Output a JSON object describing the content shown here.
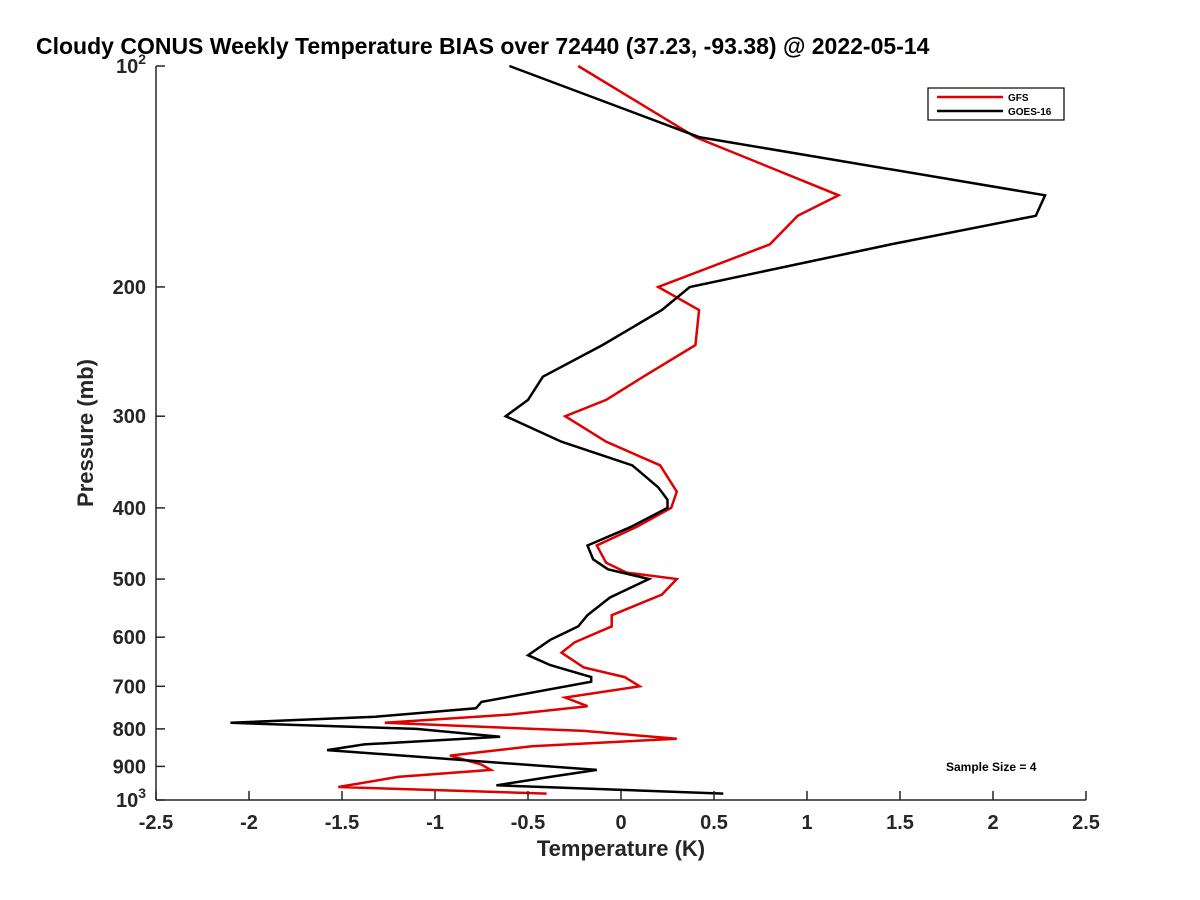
{
  "chart_data": {
    "type": "line",
    "title": "Cloudy CONUS Weekly Temperature BIAS over 72440 (37.23, -93.38) @ 2022-05-14",
    "xlabel": "Temperature (K)",
    "ylabel": "Pressure (mb)",
    "xlim": [
      -2.5,
      2.5
    ],
    "ylim": [
      100,
      1000
    ],
    "y_scale": "log",
    "y_reversed": true,
    "grid": false,
    "legend_position": "top-right",
    "xticks": [
      -2.5,
      -2,
      -1.5,
      -1,
      -0.5,
      0,
      0.5,
      1,
      1.5,
      2,
      2.5
    ],
    "xtick_labels": [
      "-2.5",
      "-2",
      "-1.5",
      "-1",
      "-0.5",
      "0",
      "0.5",
      "1",
      "1.5",
      "2",
      "2.5"
    ],
    "yticks": [
      100,
      200,
      300,
      400,
      500,
      600,
      700,
      800,
      900,
      1000
    ],
    "ytick_labels": [
      {
        "base": "10",
        "exp": "2"
      },
      {
        "base": "200",
        "exp": ""
      },
      {
        "base": "300",
        "exp": ""
      },
      {
        "base": "400",
        "exp": ""
      },
      {
        "base": "500",
        "exp": ""
      },
      {
        "base": "600",
        "exp": ""
      },
      {
        "base": "700",
        "exp": ""
      },
      {
        "base": "800",
        "exp": ""
      },
      {
        "base": "900",
        "exp": ""
      },
      {
        "base": "10",
        "exp": "3"
      }
    ],
    "annotation": "Sample Size = 4",
    "series": [
      {
        "name": "GFS",
        "color": "#e00000",
        "points": [
          {
            "x": -0.23,
            "y": 100
          },
          {
            "x": 0.4,
            "y": 125
          },
          {
            "x": 1.17,
            "y": 150
          },
          {
            "x": 0.95,
            "y": 160
          },
          {
            "x": 0.8,
            "y": 175
          },
          {
            "x": 0.2,
            "y": 200
          },
          {
            "x": 0.42,
            "y": 215
          },
          {
            "x": 0.4,
            "y": 240
          },
          {
            "x": 0.12,
            "y": 265
          },
          {
            "x": -0.08,
            "y": 285
          },
          {
            "x": -0.3,
            "y": 300
          },
          {
            "x": -0.08,
            "y": 325
          },
          {
            "x": 0.21,
            "y": 350
          },
          {
            "x": 0.3,
            "y": 380
          },
          {
            "x": 0.27,
            "y": 400
          },
          {
            "x": 0.08,
            "y": 425
          },
          {
            "x": -0.13,
            "y": 450
          },
          {
            "x": -0.08,
            "y": 475
          },
          {
            "x": 0.03,
            "y": 490
          },
          {
            "x": 0.3,
            "y": 500
          },
          {
            "x": 0.22,
            "y": 525
          },
          {
            "x": -0.05,
            "y": 560
          },
          {
            "x": -0.05,
            "y": 580
          },
          {
            "x": -0.25,
            "y": 610
          },
          {
            "x": -0.32,
            "y": 630
          },
          {
            "x": -0.2,
            "y": 660
          },
          {
            "x": 0.02,
            "y": 680
          },
          {
            "x": 0.1,
            "y": 700
          },
          {
            "x": -0.3,
            "y": 725
          },
          {
            "x": -0.18,
            "y": 745
          },
          {
            "x": -0.6,
            "y": 765
          },
          {
            "x": -1.27,
            "y": 785
          },
          {
            "x": -0.2,
            "y": 805
          },
          {
            "x": 0.3,
            "y": 825
          },
          {
            "x": -0.48,
            "y": 845
          },
          {
            "x": -0.92,
            "y": 870
          },
          {
            "x": -0.75,
            "y": 895
          },
          {
            "x": -0.7,
            "y": 910
          },
          {
            "x": -1.2,
            "y": 930
          },
          {
            "x": -1.52,
            "y": 960
          },
          {
            "x": -0.4,
            "y": 980
          }
        ]
      },
      {
        "name": "GOES-16",
        "color": "#000000",
        "points": [
          {
            "x": -0.6,
            "y": 100
          },
          {
            "x": 0.42,
            "y": 125
          },
          {
            "x": 2.28,
            "y": 150
          },
          {
            "x": 2.23,
            "y": 160
          },
          {
            "x": 1.45,
            "y": 175
          },
          {
            "x": 0.37,
            "y": 200
          },
          {
            "x": 0.22,
            "y": 215
          },
          {
            "x": -0.1,
            "y": 240
          },
          {
            "x": -0.42,
            "y": 265
          },
          {
            "x": -0.5,
            "y": 285
          },
          {
            "x": -0.62,
            "y": 300
          },
          {
            "x": -0.32,
            "y": 325
          },
          {
            "x": 0.06,
            "y": 350
          },
          {
            "x": 0.2,
            "y": 375
          },
          {
            "x": 0.25,
            "y": 390
          },
          {
            "x": 0.25,
            "y": 400
          },
          {
            "x": 0.05,
            "y": 425
          },
          {
            "x": -0.18,
            "y": 450
          },
          {
            "x": -0.15,
            "y": 470
          },
          {
            "x": -0.07,
            "y": 485
          },
          {
            "x": 0.15,
            "y": 500
          },
          {
            "x": -0.06,
            "y": 530
          },
          {
            "x": -0.18,
            "y": 560
          },
          {
            "x": -0.23,
            "y": 580
          },
          {
            "x": -0.38,
            "y": 605
          },
          {
            "x": -0.5,
            "y": 635
          },
          {
            "x": -0.38,
            "y": 655
          },
          {
            "x": -0.16,
            "y": 680
          },
          {
            "x": -0.16,
            "y": 690
          },
          {
            "x": -0.75,
            "y": 735
          },
          {
            "x": -0.78,
            "y": 750
          },
          {
            "x": -1.32,
            "y": 770
          },
          {
            "x": -2.1,
            "y": 785
          },
          {
            "x": -1.1,
            "y": 800
          },
          {
            "x": -0.65,
            "y": 820
          },
          {
            "x": -1.38,
            "y": 840
          },
          {
            "x": -1.58,
            "y": 855
          },
          {
            "x": -0.13,
            "y": 910
          },
          {
            "x": -0.38,
            "y": 930
          },
          {
            "x": -0.67,
            "y": 955
          },
          {
            "x": 0.55,
            "y": 980
          }
        ]
      }
    ]
  }
}
